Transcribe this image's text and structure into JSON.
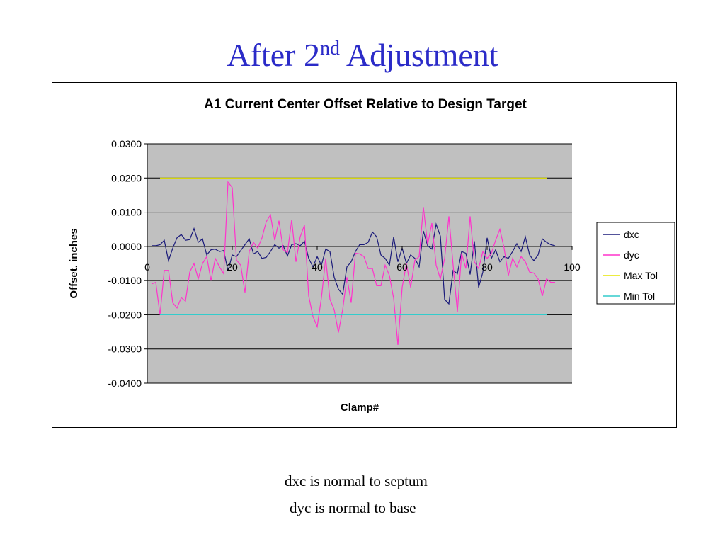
{
  "slide": {
    "title_prefix": "After 2",
    "title_sup": "nd",
    "title_suffix": " Adjustment",
    "captions": [
      "dxc is normal to septum",
      "dyc is normal to base"
    ]
  },
  "colors": {
    "title": "#2b2bc8",
    "plot_background": "#c0c0c0",
    "dxc": "#1a1a7a",
    "dyc": "#ff33cc",
    "max_tol": "#e6e600",
    "min_tol": "#33cccc"
  },
  "chart_data": {
    "type": "line",
    "title": "A1 Current Center Offset  Relative to Design Target",
    "xlabel": "Clamp#",
    "ylabel": "Offset. inches",
    "xlim": [
      0,
      100
    ],
    "ylim": [
      -0.04,
      0.03
    ],
    "xticks": [
      0,
      20,
      40,
      60,
      80,
      100
    ],
    "xtick_labels": [
      "0",
      "20",
      "40",
      "60",
      "80",
      "100"
    ],
    "yticks": [
      0.03,
      0.02,
      0.01,
      0.0,
      -0.01,
      -0.02,
      -0.03,
      -0.04
    ],
    "ytick_labels": [
      "0.0300",
      "0.0200",
      "0.0100",
      "0.0000",
      "-0.0100",
      "-0.0200",
      "-0.0300",
      "-0.0400"
    ],
    "grid": "horizontal major",
    "legend_position": "right",
    "x": [
      1,
      2,
      3,
      4,
      5,
      6,
      7,
      8,
      9,
      10,
      11,
      12,
      13,
      14,
      15,
      16,
      17,
      18,
      19,
      20,
      21,
      22,
      23,
      24,
      25,
      26,
      27,
      28,
      29,
      30,
      31,
      32,
      33,
      34,
      35,
      36,
      37,
      38,
      39,
      40,
      41,
      42,
      43,
      44,
      45,
      46,
      47,
      48,
      49,
      50,
      51,
      52,
      53,
      54,
      55,
      56,
      57,
      58,
      59,
      60,
      61,
      62,
      63,
      64,
      65,
      66,
      67,
      68,
      69,
      70,
      71,
      72,
      73,
      74,
      75,
      76,
      77,
      78,
      79,
      80,
      81,
      82,
      83,
      84,
      85,
      86,
      87,
      88,
      89,
      90,
      91,
      92,
      93,
      94,
      95,
      96
    ],
    "series": [
      {
        "name": "dxc",
        "values": [
          0.0002,
          0.0002,
          0.0005,
          0.0018,
          -0.0042,
          -0.0005,
          0.0025,
          0.0035,
          0.0018,
          0.002,
          0.0052,
          0.0012,
          0.0022,
          -0.0025,
          -0.001,
          -0.0008,
          -0.0015,
          -0.0012,
          -0.0072,
          -0.0025,
          -0.003,
          -0.0012,
          0.0005,
          0.0022,
          -0.0022,
          -0.0015,
          -0.0035,
          -0.0032,
          -0.0015,
          0.0005,
          -0.0005,
          0.0002,
          -0.0028,
          0.0005,
          0.0008,
          0.0002,
          0.0015,
          -0.0035,
          -0.006,
          -0.003,
          -0.0055,
          -0.0008,
          -0.0015,
          -0.009,
          -0.0125,
          -0.014,
          -0.006,
          -0.0045,
          -0.0015,
          0.0005,
          0.0005,
          0.0012,
          0.0042,
          0.0028,
          -0.0025,
          -0.0035,
          -0.0055,
          0.0028,
          -0.0045,
          -0.0005,
          -0.005,
          -0.0025,
          -0.0035,
          -0.006,
          0.0045,
          0.0002,
          -0.0008,
          0.0065,
          0.003,
          -0.0155,
          -0.0168,
          -0.007,
          -0.008,
          -0.0015,
          -0.002,
          -0.0082,
          0.0015,
          -0.012,
          -0.0075,
          0.0025,
          -0.0035,
          -0.001,
          -0.0045,
          -0.003,
          -0.0035,
          -0.0015,
          0.0008,
          -0.0015,
          0.0028,
          -0.0025,
          -0.0042,
          -0.0025,
          0.0022,
          0.0012,
          0.0005,
          0.0002
        ]
      },
      {
        "name": "dyc",
        "values": [
          -0.011,
          -0.0105,
          -0.02,
          -0.007,
          -0.007,
          -0.0165,
          -0.018,
          -0.015,
          -0.016,
          -0.0075,
          -0.005,
          -0.0095,
          -0.005,
          -0.003,
          -0.01,
          -0.0035,
          -0.006,
          -0.008,
          0.0188,
          0.0172,
          -0.004,
          -0.0055,
          -0.0135,
          -0.0015,
          0.0012,
          -0.0005,
          0.0025,
          0.0072,
          0.0092,
          0.0018,
          0.0075,
          -0.001,
          -0.0018,
          0.0078,
          -0.0045,
          0.0028,
          0.0062,
          -0.0145,
          -0.0205,
          -0.0235,
          -0.015,
          -0.0035,
          -0.0155,
          -0.0185,
          -0.0252,
          -0.0185,
          -0.009,
          -0.0165,
          -0.002,
          -0.0022,
          -0.003,
          -0.0065,
          -0.0065,
          -0.0115,
          -0.0115,
          -0.0055,
          -0.0085,
          -0.0152,
          -0.0288,
          -0.012,
          -0.005,
          -0.012,
          -0.004,
          -0.003,
          0.0115,
          0.0005,
          0.0068,
          -0.0055,
          -0.0095,
          -0.0035,
          0.0088,
          -0.0055,
          -0.0192,
          -0.002,
          -0.0065,
          0.0088,
          -0.0045,
          -0.0065,
          -0.0015,
          -0.0035,
          -0.002,
          0.0018,
          0.005,
          -0.0005,
          -0.0085,
          -0.0035,
          -0.006,
          -0.003,
          -0.0045,
          -0.0075,
          -0.0078,
          -0.0095,
          -0.0145,
          -0.0095,
          -0.0105,
          -0.0105
        ]
      },
      {
        "name": "Max Tol",
        "x_range": [
          3,
          94
        ],
        "value": 0.02
      },
      {
        "name": "Min Tol",
        "x_range": [
          3,
          94
        ],
        "value": -0.02
      }
    ]
  }
}
